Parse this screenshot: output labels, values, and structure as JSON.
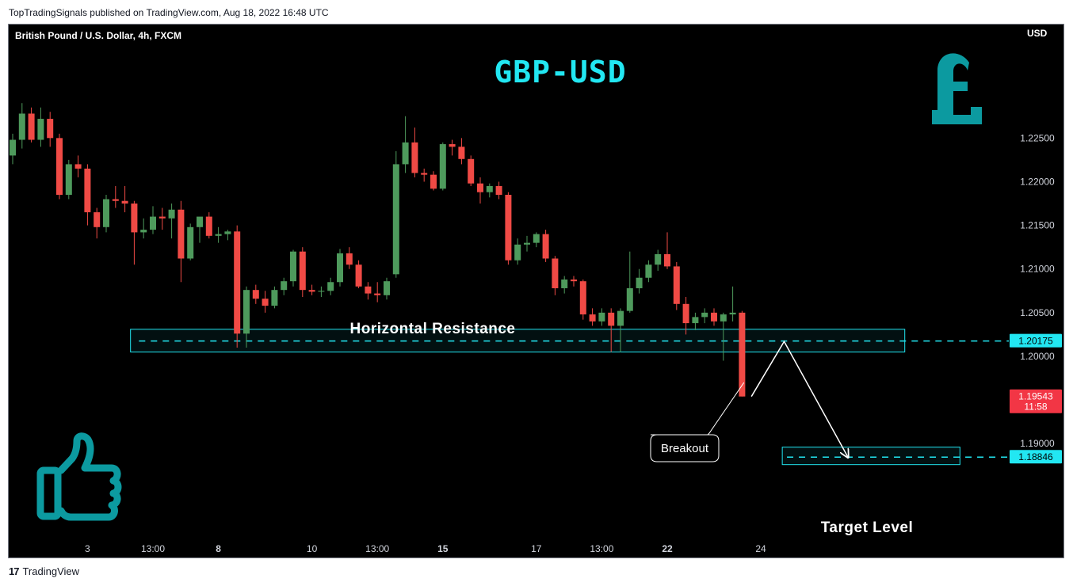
{
  "caption": "TopTradingSignals published on TradingView.com, Aug 18, 2022 16:48 UTC",
  "footer": {
    "logo_mark": "17",
    "brand": "TradingView"
  },
  "colors": {
    "background": "#000000",
    "up": "#4e9a5c",
    "down": "#f04a45",
    "cyan": "#22e7f2",
    "teal": "#0c9aa0",
    "price_badge": "#f23645"
  },
  "chart_data": {
    "type": "candlestick",
    "title": "British Pound / U.S. Dollar, 4h, FXCM",
    "headline": "GBP-USD",
    "currency": "USD",
    "ylim": [
      1.1795,
      1.238
    ],
    "y_ticks": [
      "1.22500",
      "1.22000",
      "1.21500",
      "1.21000",
      "1.20500",
      "1.20000",
      "1.19000"
    ],
    "x_ticks": [
      {
        "label": "3",
        "index": 8,
        "bold": false
      },
      {
        "label": "13:00",
        "index": 15,
        "bold": false
      },
      {
        "label": "8",
        "index": 22,
        "bold": true
      },
      {
        "label": "10",
        "index": 32,
        "bold": false
      },
      {
        "label": "13:00",
        "index": 39,
        "bold": false
      },
      {
        "label": "15",
        "index": 46,
        "bold": true
      },
      {
        "label": "17",
        "index": 56,
        "bold": false
      },
      {
        "label": "13:00",
        "index": 63,
        "bold": false
      },
      {
        "label": "22",
        "index": 70,
        "bold": true
      },
      {
        "label": "24",
        "index": 80,
        "bold": false
      }
    ],
    "candles": [
      [
        1.223,
        1.2255,
        1.222,
        1.2248
      ],
      [
        1.2248,
        1.229,
        1.2238,
        1.2278
      ],
      [
        1.2278,
        1.2285,
        1.2245,
        1.2248
      ],
      [
        1.2248,
        1.2285,
        1.224,
        1.2272
      ],
      [
        1.2272,
        1.228,
        1.224,
        1.225
      ],
      [
        1.225,
        1.2255,
        1.218,
        1.2185
      ],
      [
        1.2185,
        1.2225,
        1.218,
        1.222
      ],
      [
        1.222,
        1.223,
        1.2205,
        1.2215
      ],
      [
        1.2215,
        1.222,
        1.215,
        1.2165
      ],
      [
        1.2165,
        1.217,
        1.2135,
        1.2148
      ],
      [
        1.2148,
        1.2185,
        1.2142,
        1.218
      ],
      [
        1.218,
        1.2195,
        1.217,
        1.2178
      ],
      [
        1.2178,
        1.2195,
        1.2165,
        1.2175
      ],
      [
        1.2175,
        1.2178,
        1.2105,
        1.2142
      ],
      [
        1.2142,
        1.2158,
        1.2135,
        1.2145
      ],
      [
        1.2145,
        1.2172,
        1.214,
        1.216
      ],
      [
        1.216,
        1.217,
        1.2145,
        1.2158
      ],
      [
        1.2158,
        1.2175,
        1.2135,
        1.2168
      ],
      [
        1.2168,
        1.2178,
        1.2085,
        1.2112
      ],
      [
        1.2112,
        1.2152,
        1.211,
        1.2148
      ],
      [
        1.2148,
        1.2158,
        1.213,
        1.216
      ],
      [
        1.216,
        1.2165,
        1.2135,
        1.2138
      ],
      [
        1.2138,
        1.2148,
        1.213,
        1.214
      ],
      [
        1.214,
        1.2145,
        1.2133,
        1.2143
      ],
      [
        1.2143,
        1.215,
        1.201,
        1.2026
      ],
      [
        1.2026,
        1.208,
        1.201,
        1.2076
      ],
      [
        1.2076,
        1.2082,
        1.206,
        1.2066
      ],
      [
        1.2066,
        1.2075,
        1.205,
        1.2058
      ],
      [
        1.2058,
        1.208,
        1.2055,
        1.2076
      ],
      [
        1.2076,
        1.209,
        1.207,
        1.2086
      ],
      [
        1.2086,
        1.2122,
        1.208,
        1.212
      ],
      [
        1.212,
        1.2125,
        1.2068,
        1.2076
      ],
      [
        1.2076,
        1.2082,
        1.207,
        1.2074
      ],
      [
        1.2074,
        1.208,
        1.2068,
        1.2075
      ],
      [
        1.2075,
        1.209,
        1.207,
        1.2085
      ],
      [
        1.2085,
        1.2123,
        1.208,
        1.2118
      ],
      [
        1.2118,
        1.2125,
        1.21,
        1.2105
      ],
      [
        1.2105,
        1.211,
        1.2078,
        1.208
      ],
      [
        1.208,
        1.2085,
        1.2065,
        1.2072
      ],
      [
        1.2072,
        1.2085,
        1.2062,
        1.207
      ],
      [
        1.207,
        1.209,
        1.2065,
        1.2086
      ],
      [
        1.2094,
        1.2235,
        1.209,
        1.222
      ],
      [
        1.222,
        1.2275,
        1.221,
        1.2245
      ],
      [
        1.2245,
        1.2262,
        1.2205,
        1.221
      ],
      [
        1.221,
        1.2215,
        1.22,
        1.2208
      ],
      [
        1.2208,
        1.2212,
        1.219,
        1.2192
      ],
      [
        1.2192,
        1.2245,
        1.219,
        1.2243
      ],
      [
        1.2243,
        1.2248,
        1.223,
        1.224
      ],
      [
        1.224,
        1.225,
        1.222,
        1.2226
      ],
      [
        1.2226,
        1.223,
        1.2195,
        1.2198
      ],
      [
        1.2198,
        1.2205,
        1.2175,
        1.2188
      ],
      [
        1.2188,
        1.2198,
        1.2182,
        1.2195
      ],
      [
        1.2195,
        1.22,
        1.218,
        1.2185
      ],
      [
        1.2185,
        1.2188,
        1.2105,
        1.211
      ],
      [
        1.211,
        1.2135,
        1.2105,
        1.2128
      ],
      [
        1.2128,
        1.2138,
        1.212,
        1.213
      ],
      [
        1.213,
        1.2142,
        1.2125,
        1.214
      ],
      [
        1.214,
        1.2145,
        1.2108,
        1.2112
      ],
      [
        1.2112,
        1.2115,
        1.207,
        1.2078
      ],
      [
        1.2078,
        1.2092,
        1.2072,
        1.2088
      ],
      [
        1.2088,
        1.2092,
        1.208,
        1.2086
      ],
      [
        1.2086,
        1.2088,
        1.2042,
        1.2048
      ],
      [
        1.2048,
        1.2055,
        1.2035,
        1.204
      ],
      [
        1.204,
        1.2055,
        1.2035,
        1.205
      ],
      [
        1.205,
        1.2055,
        1.2005,
        1.2035
      ],
      [
        1.2035,
        1.2055,
        1.2005,
        1.2052
      ],
      [
        1.2052,
        1.212,
        1.205,
        1.2078
      ],
      [
        1.2078,
        1.21,
        1.2072,
        1.209
      ],
      [
        1.209,
        1.211,
        1.2085,
        1.2105
      ],
      [
        1.2105,
        1.2122,
        1.2098,
        1.2117
      ],
      [
        1.2117,
        1.2142,
        1.21,
        1.2103
      ],
      [
        1.2103,
        1.2108,
        1.2053,
        1.206
      ],
      [
        1.206,
        1.2068,
        1.2025,
        1.2038
      ],
      [
        1.2038,
        1.205,
        1.203,
        1.2045
      ],
      [
        1.2045,
        1.2055,
        1.2038,
        1.205
      ],
      [
        1.205,
        1.2055,
        1.2035,
        1.204
      ],
      [
        1.204,
        1.205,
        1.1995,
        1.2048
      ],
      [
        1.2048,
        1.208,
        1.204,
        1.205
      ],
      [
        1.205,
        1.2052,
        1.1954,
        1.1954
      ]
    ],
    "last_price": "1.19543",
    "countdown": "11:58",
    "resistance": {
      "label": "Horizontal Resistance",
      "level": 1.20175,
      "badge": "1.20175",
      "zone": [
        1.2005,
        1.2031
      ]
    },
    "target": {
      "label": "Target Level",
      "level": 1.18846,
      "badge": "1.18846",
      "zone": [
        1.1876,
        1.1896
      ]
    },
    "path": [
      [
        79,
        1.1954
      ],
      [
        82.5,
        1.2017
      ],
      [
        89.3,
        1.1885
      ]
    ],
    "annotation": "Breakout"
  }
}
